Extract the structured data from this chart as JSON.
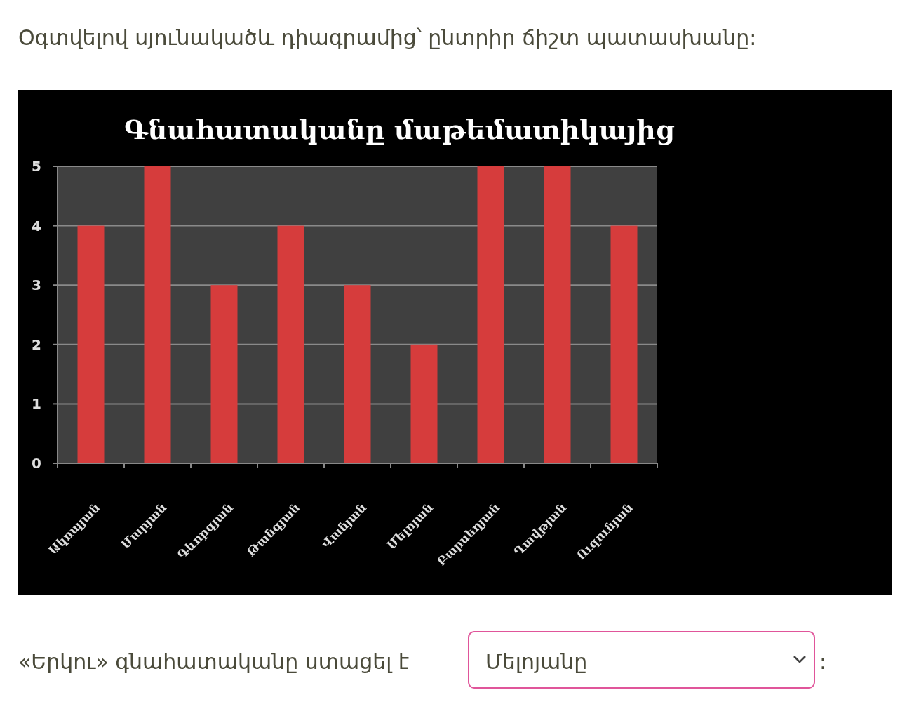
{
  "chart_data": {
    "type": "bar",
    "title": "Գնահատականը մաթեմատիկայից",
    "categories": [
      "Ակոպյան",
      "Մարյան",
      "Գևորգյան",
      "Թանգյան",
      "Վանյան",
      "Մելոյան",
      "Բարսեղյան",
      "Ղավթյան",
      "Ուզունյան"
    ],
    "values": [
      4,
      5,
      3,
      4,
      3,
      2,
      5,
      5,
      4
    ],
    "color": "#d63c3c",
    "ylim": [
      0,
      5
    ],
    "yticks": [
      0,
      1,
      2,
      3,
      4,
      5
    ],
    "grid": "y",
    "annotations": [
      "Օգտվելով սյունակածև դիագրամից՝ ընտրիր ճիշտ պատասխանը:",
      "«Երկու» գնահատականը ստացել է",
      "Մելոյանը",
      ":"
    ]
  }
}
